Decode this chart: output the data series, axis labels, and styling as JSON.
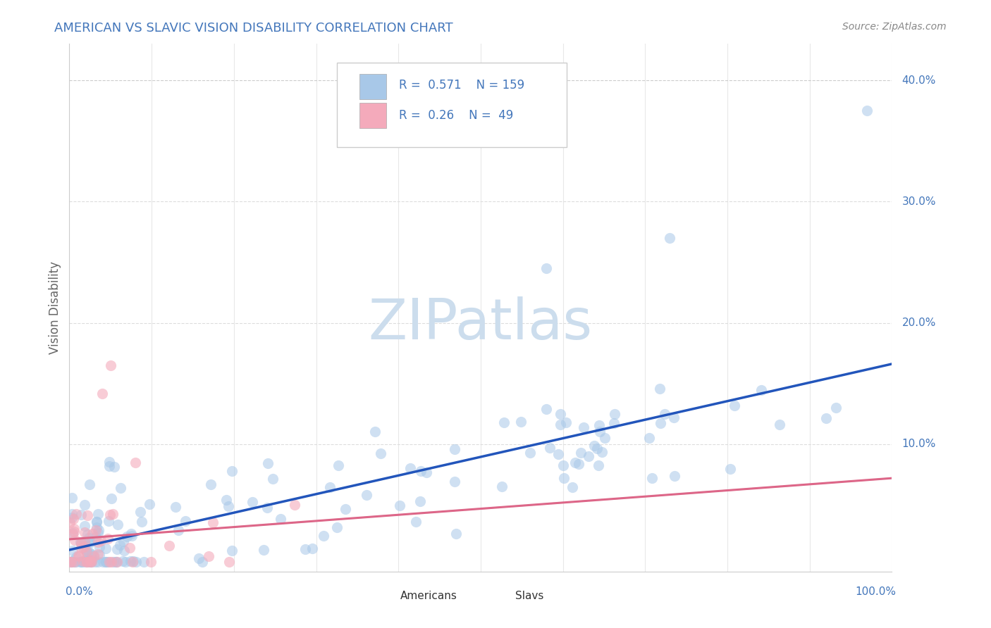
{
  "title": "AMERICAN VS SLAVIC VISION DISABILITY CORRELATION CHART",
  "source": "Source: ZipAtlas.com",
  "ylabel": "Vision Disability",
  "xlim": [
    0,
    1
  ],
  "ylim": [
    -0.005,
    0.43
  ],
  "american_R": 0.571,
  "american_N": 159,
  "slavic_R": 0.26,
  "slavic_N": 49,
  "american_color": "#a8c8e8",
  "slavic_color": "#f4aabb",
  "american_line_color": "#2255bb",
  "slavic_line_color": "#dd6688",
  "slavic_line_style": "-",
  "watermark": "ZIPatlas",
  "watermark_color": "#ccdded",
  "background_color": "#ffffff",
  "grid_color": "#dddddd",
  "title_color": "#4477bb",
  "axis_label_color": "#4477bb",
  "legend_label1": "Americans",
  "legend_label2": "Slavs"
}
